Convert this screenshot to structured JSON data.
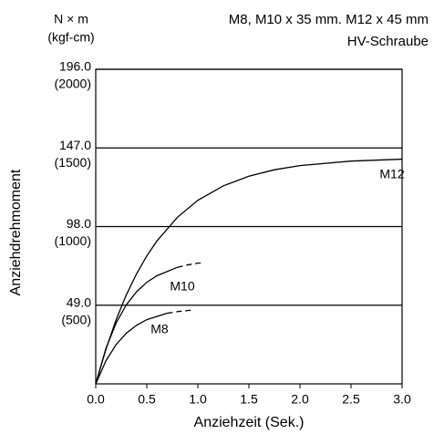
{
  "chart_data": {
    "type": "line",
    "title": "M8, M10 x 35 mm. M12 x 45 mm",
    "subtitle": "HV-Schraube",
    "y_unit": "N × m",
    "y_unit_sub": "(kgf-cm)",
    "ylabel": "Anziehdrehmoment",
    "xlabel": "Anziehzeit (Sek.)",
    "xlim": [
      0,
      3
    ],
    "ylim": [
      0,
      196
    ],
    "xticks": [
      {
        "value": 0,
        "label": "0.0"
      },
      {
        "value": 0.5,
        "label": "0.5"
      },
      {
        "value": 1,
        "label": "1.0"
      },
      {
        "value": 1.5,
        "label": "1.5"
      },
      {
        "value": 2,
        "label": "2.0"
      },
      {
        "value": 2.5,
        "label": "2.5"
      },
      {
        "value": 3,
        "label": "3.0"
      }
    ],
    "yticks": [
      {
        "value": 49,
        "label": "49.0"
      },
      {
        "value": 98,
        "label": "98.0"
      },
      {
        "value": 147,
        "label": "147.0"
      },
      {
        "value": 196,
        "label": "196.0"
      }
    ],
    "ytick_sublabels": [
      "(500)",
      "(1000)",
      "(1500)",
      "(2000)"
    ],
    "grid": true,
    "series": [
      {
        "name": "M12",
        "color": "#000000",
        "x": [
          0,
          0.1,
          0.2,
          0.3,
          0.4,
          0.5,
          0.6,
          0.8,
          1.0,
          1.25,
          1.5,
          1.75,
          2.0,
          2.5,
          3.0
        ],
        "values": [
          0,
          21.6,
          40,
          55.5,
          68.6,
          79.7,
          89.1,
          103.8,
          114.4,
          123.4,
          129.4,
          133.4,
          136,
          138.8,
          140
        ]
      },
      {
        "name": "M10",
        "color": "#000000",
        "x": [
          0,
          0.1,
          0.2,
          0.3,
          0.4,
          0.5,
          0.6,
          0.8
        ],
        "values": [
          0,
          22.1,
          38,
          49.3,
          57.4,
          63.3,
          67.4,
          72.6
        ],
        "extension_x": [
          0.8,
          0.9,
          1.0,
          1.05
        ],
        "extension_values": [
          72.6,
          74.1,
          75.2,
          75.5
        ]
      },
      {
        "name": "M8",
        "color": "#000000",
        "x": [
          0,
          0.1,
          0.2,
          0.3,
          0.4,
          0.5,
          0.7
        ],
        "values": [
          0,
          14.4,
          24.5,
          31.6,
          36.5,
          40,
          44
        ],
        "extension_x": [
          0.7,
          0.8,
          0.95
        ],
        "extension_values": [
          44,
          45,
          46
        ]
      }
    ]
  }
}
